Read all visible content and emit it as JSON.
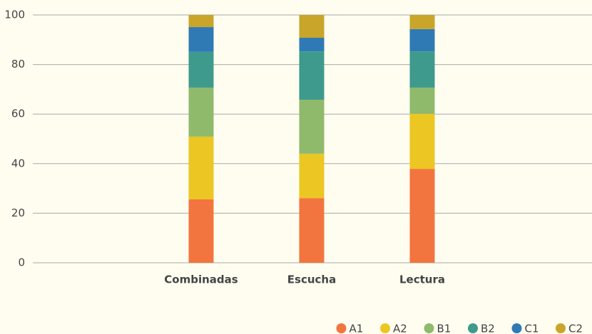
{
  "chart_data": {
    "type": "stacked_bar",
    "categories": [
      "Combinadas",
      "Escucha",
      "Lectura"
    ],
    "series": [
      {
        "name": "A1",
        "color": "#f2753f",
        "values": [
          25.6,
          26.1,
          37.9
        ]
      },
      {
        "name": "A2",
        "color": "#ecc623",
        "values": [
          25.3,
          17.9,
          22.2
        ]
      },
      {
        "name": "B1",
        "color": "#8fba6c",
        "values": [
          19.8,
          21.8,
          10.6
        ]
      },
      {
        "name": "B2",
        "color": "#3e9a8c",
        "values": [
          14.4,
          19.5,
          14.6
        ]
      },
      {
        "name": "C1",
        "color": "#2f7ab5",
        "values": [
          10,
          5.5,
          9
        ]
      },
      {
        "name": "C2",
        "color": "#c9a52a",
        "values": [
          4.9,
          9.2,
          5.7
        ]
      }
    ],
    "ylim": [
      0,
      100
    ],
    "yticks": [
      0,
      20,
      40,
      60,
      80,
      100
    ],
    "grid": true,
    "legend": "bottom-right"
  }
}
